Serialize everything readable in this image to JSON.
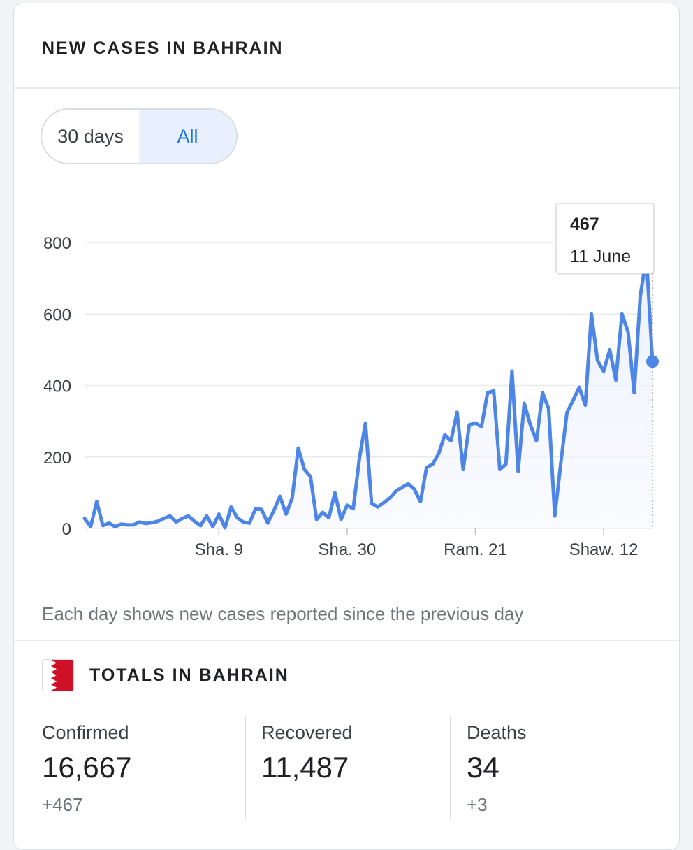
{
  "card": {
    "title": "NEW CASES IN BAHRAIN"
  },
  "toggle": {
    "options": [
      "30 days",
      "All"
    ],
    "selected": "All"
  },
  "chart_data": {
    "type": "line",
    "title": "NEW CASES IN BAHRAIN",
    "ylim": [
      0,
      800
    ],
    "yticks": [
      0,
      200,
      400,
      600,
      800
    ],
    "xtick_labels": [
      "Sha. 9",
      "Sha. 30",
      "Ram. 21",
      "Shaw. 12"
    ],
    "xtick_indices": [
      22,
      43,
      64,
      85
    ],
    "series": [
      {
        "name": "New cases",
        "values": [
          28,
          5,
          75,
          8,
          15,
          5,
          12,
          10,
          10,
          18,
          14,
          16,
          20,
          28,
          35,
          18,
          28,
          35,
          20,
          8,
          35,
          5,
          40,
          2,
          60,
          30,
          18,
          15,
          55,
          53,
          15,
          50,
          90,
          40,
          85,
          225,
          165,
          145,
          25,
          45,
          30,
          100,
          25,
          65,
          55,
          195,
          295,
          70,
          60,
          72,
          85,
          105,
          115,
          125,
          110,
          75,
          170,
          180,
          210,
          262,
          245,
          325,
          165,
          290,
          295,
          285,
          380,
          385,
          165,
          180,
          440,
          160,
          350,
          290,
          245,
          380,
          335,
          35,
          185,
          325,
          358,
          395,
          345,
          600,
          470,
          440,
          500,
          415,
          600,
          550,
          380,
          650,
          760,
          467
        ]
      }
    ],
    "tooltip": {
      "value": "467",
      "date": "11 June"
    },
    "note": "Each day shows new cases reported since the previous day"
  },
  "totals": {
    "title": "TOTALS IN BAHRAIN",
    "flag": "bahrain-flag",
    "stats": [
      {
        "label": "Confirmed",
        "value": "16,667",
        "change": "+467"
      },
      {
        "label": "Recovered",
        "value": "11,487",
        "change": ""
      },
      {
        "label": "Deaths",
        "value": "34",
        "change": "+3"
      }
    ]
  },
  "colors": {
    "line": "#4e86e8",
    "accent": "#1a73e8",
    "flag_red": "#ce1126"
  }
}
